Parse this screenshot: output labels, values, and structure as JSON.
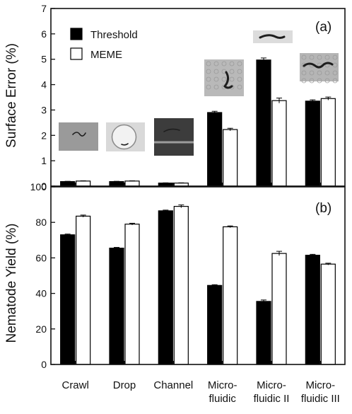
{
  "colors": {
    "threshold": "#000000",
    "meme": "#ffffff",
    "axis": "#111111"
  },
  "categories": [
    "Crawl",
    "Drop",
    "Channel",
    "Micro-\nfluidic",
    "Micro-\nfluidic II",
    "Micro-\nfluidic III"
  ],
  "chart_data": [
    {
      "type": "bar",
      "panel_label": "(a)",
      "ylabel": "Surface Error (%)",
      "ylim": [
        0,
        7
      ],
      "yticks": [
        0,
        1,
        2,
        3,
        4,
        5,
        6,
        7
      ],
      "legend": {
        "position": "top-left",
        "entries": [
          "Threshold",
          "MEME"
        ]
      },
      "categories": [
        "Crawl",
        "Drop",
        "Channel",
        "Micro-\nfluidic",
        "Micro-\nfluidic II",
        "Micro-\nfluidic III"
      ],
      "series": [
        {
          "name": "Threshold",
          "values": [
            0.18,
            0.18,
            0.12,
            2.9,
            4.97,
            3.35
          ],
          "errors": [
            0.01,
            0.01,
            0.01,
            0.05,
            0.08,
            0.05
          ]
        },
        {
          "name": "MEME",
          "values": [
            0.2,
            0.2,
            0.12,
            2.23,
            3.37,
            3.45
          ],
          "errors": [
            0.01,
            0.01,
            0.01,
            0.05,
            0.1,
            0.06
          ]
        }
      ],
      "images": [
        "worm-on-agar-image",
        "worm-in-droplet-image",
        "worm-in-channel-image",
        "worm-in-microfluidic-image",
        "worm-in-microfluidic-ii-image",
        "worm-in-microfluidic-iii-image"
      ]
    },
    {
      "type": "bar",
      "panel_label": "(b)",
      "ylabel": "Nematode Yield (%)",
      "ylim": [
        0,
        100
      ],
      "yticks": [
        0,
        20,
        40,
        60,
        80,
        100
      ],
      "categories": [
        "Crawl",
        "Drop",
        "Channel",
        "Micro-\nfluidic",
        "Micro-\nfluidic II",
        "Micro-\nfluidic III"
      ],
      "series": [
        {
          "name": "Threshold",
          "values": [
            73,
            65.5,
            86.5,
            44.5,
            35.5,
            61.5
          ],
          "errors": [
            0.4,
            0.4,
            0.4,
            0.4,
            0.8,
            0.5
          ]
        },
        {
          "name": "MEME",
          "values": [
            83.5,
            79,
            89,
            77.5,
            62.5,
            56.5
          ],
          "errors": [
            0.6,
            0.5,
            0.8,
            0.5,
            1.2,
            0.5
          ]
        }
      ]
    }
  ]
}
